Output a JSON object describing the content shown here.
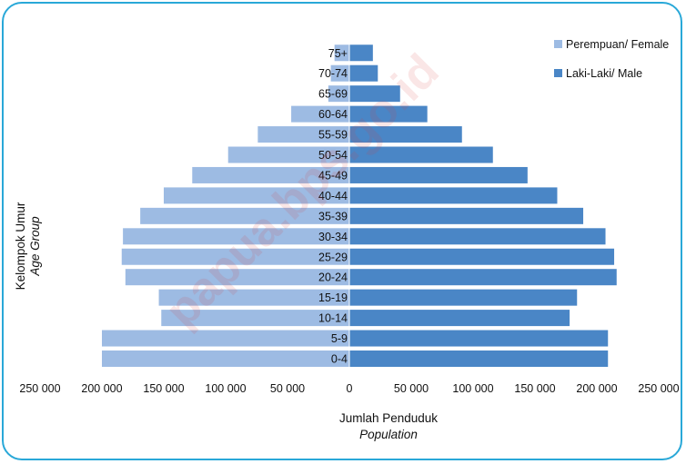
{
  "chart_data": {
    "type": "bar",
    "orientation": "horizontal",
    "layout": "population-pyramid",
    "categories": [
      "0-4",
      "5-9",
      "10-14",
      "15-19",
      "20-24",
      "25-29",
      "30-34",
      "35-39",
      "40-44",
      "45-49",
      "50-54",
      "55-59",
      "60-64",
      "65-69",
      "70-74",
      "75+"
    ],
    "series": [
      {
        "name": "Perempuan/ Female",
        "color": "#9dbbe3",
        "values": [
          200000,
          200000,
          152000,
          154000,
          181000,
          184000,
          183000,
          169000,
          150000,
          127000,
          98000,
          74000,
          47000,
          17000,
          15000,
          12000
        ]
      },
      {
        "name": "Laki-Laki/ Male",
        "color": "#4a86c6",
        "values": [
          209000,
          209000,
          178000,
          184000,
          216000,
          214000,
          207000,
          189000,
          168000,
          144000,
          116000,
          91000,
          63000,
          41000,
          23000,
          19000
        ]
      }
    ],
    "xticks": [
      "250 000",
      "200 000",
      "150 000",
      "100 000",
      "50 000",
      "0",
      "50 000",
      "100 000",
      "150 000",
      "200 000",
      "250 000"
    ],
    "xlim": [
      -250000,
      250000
    ],
    "xlabel": "Jumlah Penduduk",
    "xlabel_en": "Population",
    "ylabel": "Kelompok Umur",
    "ylabel_en": "Age Group",
    "legend_position": "top-right",
    "grid": false
  },
  "watermark": "papua.bps.go.id"
}
